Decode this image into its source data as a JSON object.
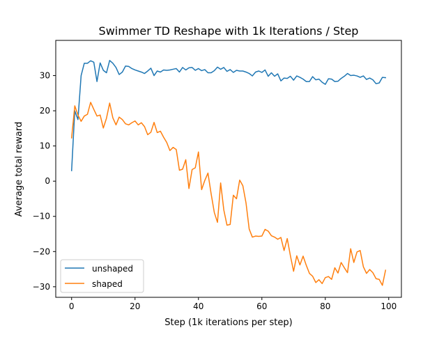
{
  "chart_data": {
    "type": "line",
    "title": "Swimmer TD Reshape with 1k Iterations / Step",
    "xlabel": "Step (1k iterations per step)",
    "ylabel": "Average total reward",
    "xlim": [
      -5,
      104
    ],
    "ylim": [
      -33,
      40
    ],
    "xticks": [
      0,
      20,
      40,
      60,
      80,
      100
    ],
    "yticks": [
      -30,
      -20,
      -10,
      0,
      10,
      20,
      30
    ],
    "legend_position": "lower-left",
    "grid": false,
    "series": [
      {
        "name": "unshaped",
        "color": "#1f77b4",
        "x": [
          0,
          1,
          2,
          3,
          4,
          5,
          6,
          7,
          8,
          9,
          10,
          11,
          12,
          13,
          14,
          15,
          16,
          17,
          18,
          19,
          20,
          21,
          22,
          23,
          24,
          25,
          26,
          27,
          28,
          29,
          30,
          31,
          32,
          33,
          34,
          35,
          36,
          37,
          38,
          39,
          40,
          41,
          42,
          43,
          44,
          45,
          46,
          47,
          48,
          49,
          50,
          51,
          52,
          53,
          54,
          55,
          56,
          57,
          58,
          59,
          60,
          61,
          62,
          63,
          64,
          65,
          66,
          67,
          68,
          69,
          70,
          71,
          72,
          73,
          74,
          75,
          76,
          77,
          78,
          79,
          80,
          81,
          82,
          83,
          84,
          85,
          86,
          87,
          88,
          89,
          90,
          91,
          92,
          93,
          94,
          95,
          96,
          97,
          98,
          99
        ],
        "values": [
          3.0,
          20.0,
          17.5,
          30.0,
          33.5,
          33.5,
          34.2,
          33.8,
          28.3,
          33.6,
          31.5,
          30.8,
          34.3,
          33.5,
          32.3,
          30.3,
          31.0,
          32.7,
          32.6,
          32.0,
          31.6,
          31.3,
          31.0,
          30.6,
          31.3,
          32.1,
          30.0,
          31.3,
          31.0,
          31.6,
          31.5,
          31.6,
          31.8,
          32.0,
          31.0,
          32.3,
          31.6,
          32.2,
          32.3,
          31.5,
          32.0,
          31.4,
          31.7,
          30.8,
          30.8,
          31.4,
          32.4,
          31.8,
          32.3,
          31.2,
          31.7,
          30.9,
          31.5,
          31.3,
          31.3,
          31.0,
          30.6,
          29.9,
          31.0,
          31.3,
          30.9,
          31.6,
          29.8,
          30.8,
          29.8,
          30.5,
          28.5,
          29.3,
          29.2,
          29.8,
          28.7,
          29.9,
          29.5,
          29.0,
          28.3,
          28.3,
          29.7,
          28.8,
          29.0,
          28.1,
          27.5,
          29.1,
          29.0,
          28.3,
          28.4,
          29.2,
          29.8,
          30.6,
          30.0,
          30.1,
          29.9,
          29.5,
          29.9,
          28.9,
          29.3,
          28.8,
          27.7,
          27.9,
          29.5,
          29.4
        ]
      },
      {
        "name": "shaped",
        "color": "#ff7f0e",
        "x": [
          0,
          1,
          2,
          3,
          4,
          5,
          6,
          7,
          8,
          9,
          10,
          11,
          12,
          13,
          14,
          15,
          16,
          17,
          18,
          19,
          20,
          21,
          22,
          23,
          24,
          25,
          26,
          27,
          28,
          29,
          30,
          31,
          32,
          33,
          34,
          35,
          36,
          37,
          38,
          39,
          40,
          41,
          42,
          43,
          44,
          45,
          46,
          47,
          48,
          49,
          50,
          51,
          52,
          53,
          54,
          55,
          56,
          57,
          58,
          59,
          60,
          61,
          62,
          63,
          64,
          65,
          66,
          67,
          68,
          69,
          70,
          71,
          72,
          73,
          74,
          75,
          76,
          77,
          78,
          79,
          80,
          81,
          82,
          83,
          84,
          85,
          86,
          87,
          88,
          89,
          90,
          91,
          92,
          93,
          94,
          95,
          96,
          97,
          98,
          99
        ],
        "values": [
          12.3,
          21.4,
          18.8,
          17.0,
          18.5,
          19.0,
          22.4,
          20.4,
          18.5,
          18.8,
          15.1,
          17.9,
          22.2,
          18.0,
          16.0,
          18.2,
          17.5,
          16.3,
          16.0,
          16.6,
          17.1,
          16.0,
          16.6,
          15.5,
          13.2,
          13.9,
          16.7,
          13.8,
          14.2,
          12.5,
          11.0,
          8.7,
          9.6,
          9.0,
          3.1,
          3.4,
          6.1,
          -2.1,
          3.3,
          3.8,
          8.3,
          -2.4,
          0.2,
          2.3,
          -3.6,
          -8.9,
          -11.7,
          -0.5,
          -8.2,
          -12.5,
          -12.3,
          -4.0,
          -5.0,
          0.3,
          -1.3,
          -6.2,
          -13.6,
          -15.9,
          -15.6,
          -15.7,
          -15.6,
          -13.7,
          -14.2,
          -15.5,
          -15.9,
          -16.5,
          -16.0,
          -19.7,
          -16.3,
          -21.2,
          -25.6,
          -21.2,
          -23.8,
          -21.3,
          -23.9,
          -26.2,
          -27.0,
          -28.8,
          -28.0,
          -29.1,
          -27.4,
          -27.1,
          -27.9,
          -24.6,
          -26.1,
          -23.1,
          -24.6,
          -26.0,
          -19.2,
          -23.1,
          -20.1,
          -19.7,
          -24.3,
          -26.2,
          -25.1,
          -26.0,
          -27.7,
          -27.9,
          -29.6,
          -25.3
        ]
      }
    ]
  }
}
